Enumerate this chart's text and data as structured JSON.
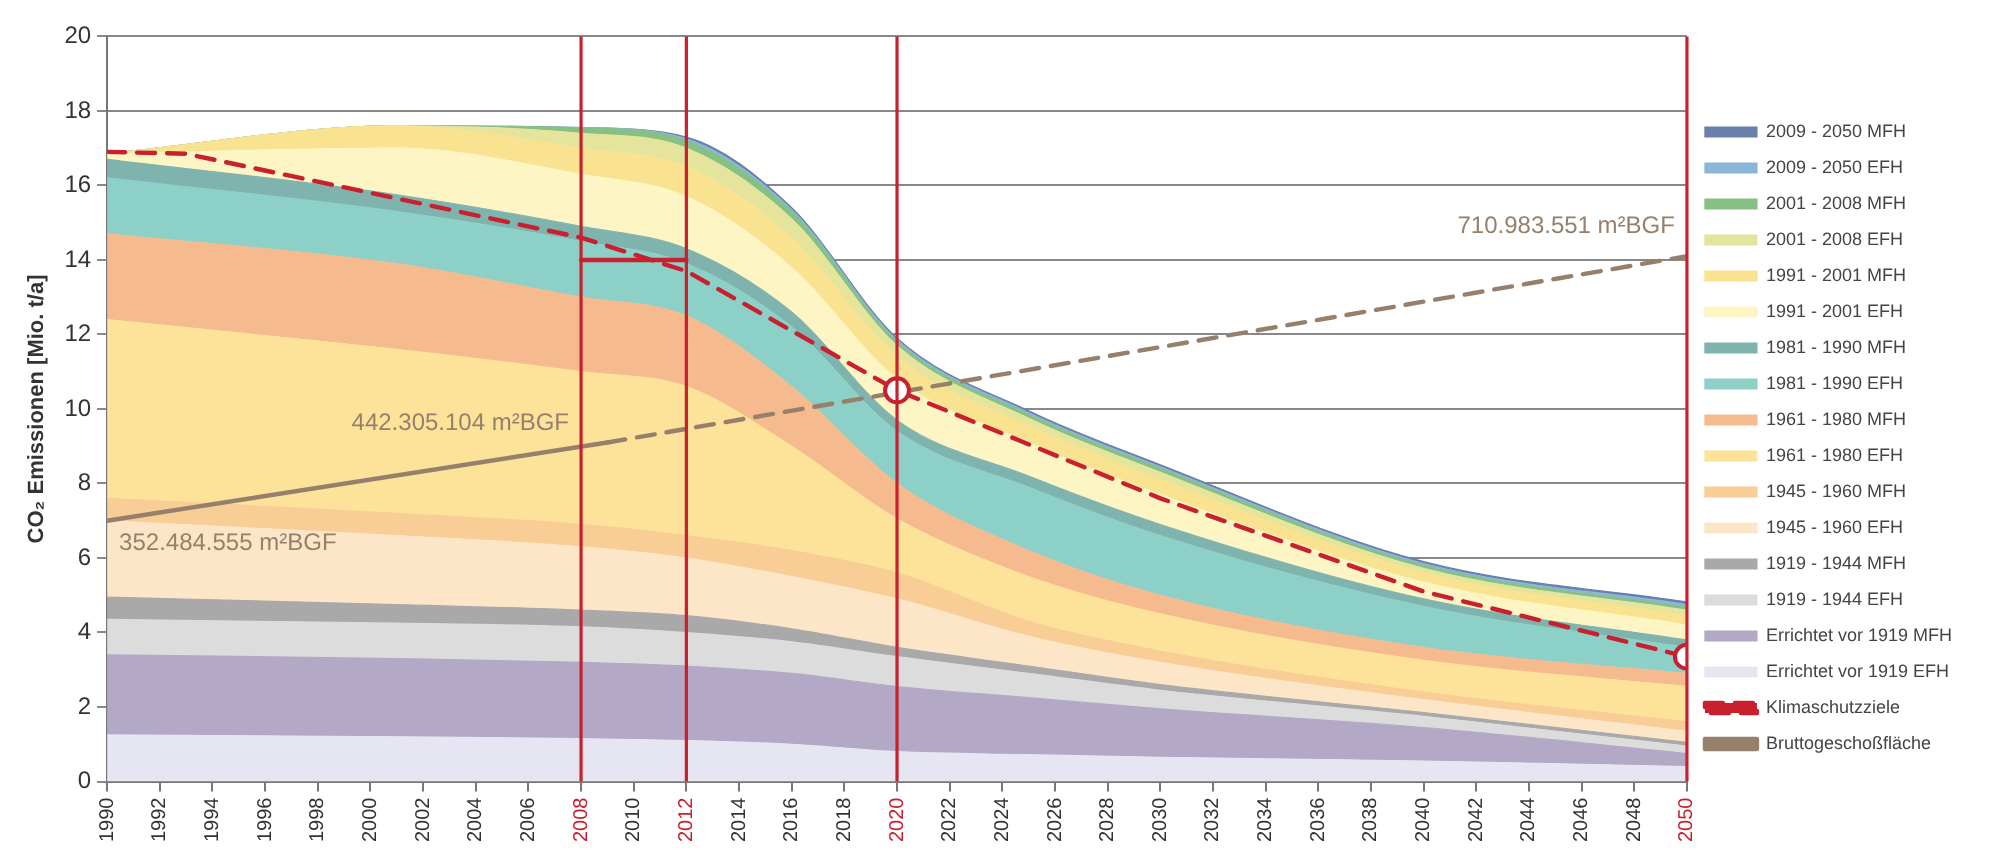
{
  "chart_data": {
    "type": "area",
    "stacked": true,
    "ylabel": "CO₂ Emissionen [Mio. t/a]",
    "x": [
      1990,
      2001,
      2008,
      2012,
      2016,
      2020,
      2025,
      2030,
      2040,
      2050
    ],
    "xlim": [
      1990,
      2050
    ],
    "xticks": [
      1990,
      1992,
      1994,
      1996,
      1998,
      2000,
      2002,
      2004,
      2006,
      2008,
      2010,
      2012,
      2014,
      2016,
      2018,
      2020,
      2022,
      2024,
      2026,
      2028,
      2030,
      2032,
      2034,
      2036,
      2038,
      2040,
      2042,
      2044,
      2046,
      2048,
      2050
    ],
    "ylim": [
      0,
      20
    ],
    "yticks": [
      0,
      2,
      4,
      6,
      8,
      10,
      12,
      14,
      16,
      18,
      20
    ],
    "grid": "y",
    "legend": "right",
    "series": [
      {
        "name": "Errichtet vor 1919 EFH",
        "color": "#e6e6f2",
        "values": [
          1.25,
          1.2,
          1.15,
          1.1,
          1.0,
          0.8,
          0.72,
          0.65,
          0.55,
          0.4
        ]
      },
      {
        "name": "Errichtet vor 1919 MFH",
        "color": "#b3a8c6",
        "values": [
          2.15,
          2.1,
          2.05,
          2.0,
          1.9,
          1.75,
          1.53,
          1.3,
          0.9,
          0.35
        ]
      },
      {
        "name": "1919 - 1944 EFH",
        "color": "#dcdcdc",
        "values": [
          0.95,
          0.95,
          0.95,
          0.9,
          0.85,
          0.8,
          0.65,
          0.5,
          0.3,
          0.2
        ]
      },
      {
        "name": "1919 - 1944 MFH",
        "color": "#a9a9a9",
        "values": [
          0.6,
          0.5,
          0.45,
          0.45,
          0.35,
          0.25,
          0.2,
          0.15,
          0.1,
          0.1
        ]
      },
      {
        "name": "1945 - 1960 EFH",
        "color": "#fde6c8",
        "values": [
          2.05,
          1.85,
          1.7,
          1.55,
          1.4,
          1.3,
          0.8,
          0.6,
          0.35,
          0.3
        ]
      },
      {
        "name": "1945 - 1960 MFH",
        "color": "#f8cd96",
        "values": [
          0.6,
          0.6,
          0.6,
          0.6,
          0.7,
          0.7,
          0.4,
          0.3,
          0.2,
          0.25
        ]
      },
      {
        "name": "1961 - 1980 EFH",
        "color": "#fde29a",
        "values": [
          4.8,
          4.4,
          4.1,
          4.0,
          2.8,
          1.45,
          1.2,
          1.0,
          0.85,
          0.95
        ]
      },
      {
        "name": "1961 - 1980 MFH",
        "color": "#f5bb8e",
        "values": [
          2.3,
          2.3,
          2.0,
          1.9,
          1.6,
          0.95,
          0.7,
          0.5,
          0.35,
          0.35
        ]
      },
      {
        "name": "1981 - 1990 EFH",
        "color": "#8dd0c8",
        "values": [
          1.5,
          1.4,
          1.5,
          1.4,
          1.6,
          1.4,
          1.7,
          1.6,
          1.1,
          0.7
        ]
      },
      {
        "name": "1981 - 1990 MFH",
        "color": "#7fb4ae",
        "values": [
          0.5,
          0.45,
          0.4,
          0.4,
          0.4,
          0.3,
          0.3,
          0.3,
          0.2,
          0.2
        ]
      },
      {
        "name": "1991 - 2001 EFH",
        "color": "#fdf5c4",
        "values": [
          0.15,
          1.25,
          1.4,
          1.4,
          1.2,
          1.1,
          0.9,
          0.8,
          0.45,
          0.4
        ]
      },
      {
        "name": "1991 - 2001 MFH",
        "color": "#f9e391",
        "values": [
          0,
          0.6,
          0.7,
          0.8,
          0.8,
          0.6,
          0.45,
          0.4,
          0.25,
          0.25
        ]
      },
      {
        "name": "2001 - 2008 EFH",
        "color": "#e4e49c",
        "values": [
          0,
          0,
          0.4,
          0.5,
          0.5,
          0.3,
          0.2,
          0.2,
          0.12,
          0.15
        ]
      },
      {
        "name": "2001 - 2008 MFH",
        "color": "#86c084",
        "values": [
          0,
          0,
          0.15,
          0.2,
          0.2,
          0.1,
          0.1,
          0.1,
          0.08,
          0.08
        ]
      },
      {
        "name": "2009 - 2050 EFH",
        "color": "#8ab6da",
        "values": [
          0,
          0,
          0,
          0.05,
          0.05,
          0.05,
          0.05,
          0.05,
          0.05,
          0.07
        ]
      },
      {
        "name": "2009 - 2050 MFH",
        "color": "#6880aa",
        "values": [
          0,
          0,
          0,
          0.05,
          0.05,
          0.05,
          0.05,
          0.05,
          0.05,
          0.07
        ]
      },
      {
        "name": "Klimaschutzziele",
        "type": "line",
        "line_style": "dashed",
        "color": "#c8202e",
        "x": [
          1990,
          1993,
          2008,
          2012,
          2020,
          2030,
          2040,
          2050
        ],
        "values": [
          16.9,
          16.85,
          14.6,
          13.7,
          10.5,
          7.6,
          5.1,
          3.35
        ]
      },
      {
        "name": "Bruttogeschoßfläche",
        "type": "line",
        "line_style": "solid",
        "color": "#96806c",
        "x": [
          1990,
          2009
        ],
        "values": [
          7.0,
          9.1
        ]
      },
      {
        "type": "line",
        "line_style": "dashed",
        "color": "#96806c",
        "x": [
          2009,
          2050
        ],
        "values": [
          9.1,
          14.1
        ]
      },
      {
        "type": "line",
        "line_style": "solid",
        "color": "#c8202e",
        "x": [
          2008,
          2012
        ],
        "values": [
          14,
          14
        ]
      },
      {
        "type": "scatter",
        "marker": "circle",
        "color": "#c8202e",
        "x": [
          2020,
          2050
        ],
        "values": [
          10.5,
          3.35
        ]
      }
    ],
    "ref_lines": [
      {
        "axis": "x",
        "value": 2008,
        "color": "#c8202e"
      },
      {
        "axis": "x",
        "value": 2012,
        "color": "#c8202e"
      },
      {
        "axis": "x",
        "value": 2020,
        "color": "#c8202e"
      },
      {
        "axis": "x",
        "value": 2050,
        "color": "#c8202e"
      }
    ],
    "annotations": [
      {
        "text": "352.484.555 m²BGF",
        "x": 1990,
        "y": 6.4
      },
      {
        "text": "442.305.104 m²BGF",
        "x": 2008,
        "y": 9.6
      },
      {
        "text": "710.983.551 m²BGF",
        "x": 2050,
        "y": 14.9
      }
    ]
  }
}
